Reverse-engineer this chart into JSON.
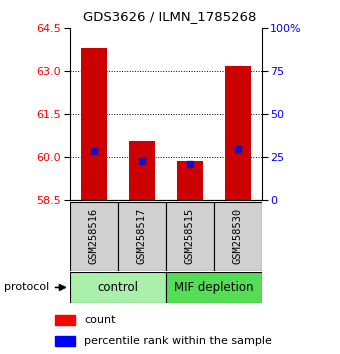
{
  "title": "GDS3626 / ILMN_1785268",
  "samples": [
    "GSM258516",
    "GSM258517",
    "GSM258515",
    "GSM258530"
  ],
  "count_values": [
    63.8,
    60.55,
    59.85,
    63.2
  ],
  "percentile_values": [
    60.2,
    59.85,
    59.75,
    60.3
  ],
  "ylim_left": [
    58.5,
    64.5
  ],
  "yticks_left": [
    58.5,
    60.0,
    61.5,
    63.0,
    64.5
  ],
  "grid_yticks": [
    60.0,
    61.5,
    63.0
  ],
  "yticks_right": [
    0,
    25,
    50,
    75,
    100
  ],
  "bar_color": "#cc0000",
  "dot_color": "#1111cc",
  "bar_width": 0.55,
  "background_color": "#ffffff",
  "label_count": "count",
  "label_percentile": "percentile rank within the sample",
  "control_color": "#aaf0aa",
  "mif_color": "#55dd55",
  "sample_box_color": "#d0d0d0",
  "title_fontsize": 9.5,
  "tick_fontsize": 8,
  "legend_fontsize": 8
}
